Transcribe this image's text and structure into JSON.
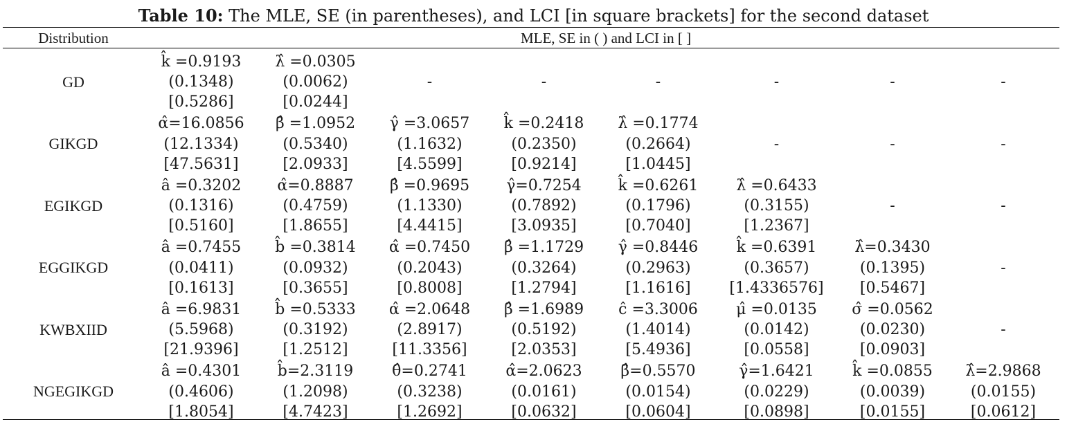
{
  "caption": {
    "label": "Table 10:",
    "text": " The MLE, SE (in parentheses), and LCI [in square brackets] for the second dataset"
  },
  "header": {
    "distribution": "Distribution",
    "mle": "MLE, SE in ( ) and LCI in [ ]"
  },
  "rows": [
    {
      "name": "GD",
      "cells": [
        {
          "est": "k̂ =0.9193",
          "se": "(0.1348)",
          "lci": "[0.5286]"
        },
        {
          "est": "λ̂ =0.0305",
          "se": "(0.0062)",
          "lci": "[0.0244]"
        },
        {
          "dash": "-"
        },
        {
          "dash": "-"
        },
        {
          "dash": "-"
        },
        {
          "dash": "-"
        },
        {
          "dash": "-"
        },
        {
          "dash": "-"
        }
      ]
    },
    {
      "name": "GIKGD",
      "cells": [
        {
          "est": "α̂=16.0856",
          "se": "(12.1334)",
          "lci": "[47.5631]"
        },
        {
          "est": "β̂ =1.0952",
          "se": "(0.5340)",
          "lci": "[2.0933]"
        },
        {
          "est": "γ̂ =3.0657",
          "se": "(1.1632)",
          "lci": "[4.5599]"
        },
        {
          "est": "k̂ =0.2418",
          "se": "(0.2350)",
          "lci": "[0.9214]"
        },
        {
          "est": "λ̂ =0.1774",
          "se": "(0.2664)",
          "lci": "[1.0445]"
        },
        {
          "dash": "-"
        },
        {
          "dash": "-"
        },
        {
          "dash": "-"
        }
      ]
    },
    {
      "name": "EGIKGD",
      "cells": [
        {
          "est": "â =0.3202",
          "se": "(0.1316)",
          "lci": "[0.5160]"
        },
        {
          "est": "α̂=0.8887",
          "se": "(0.4759)",
          "lci": "[1.8655]"
        },
        {
          "est": "β̂ =0.9695",
          "se": "(1.1330)",
          "lci": "[4.4415]"
        },
        {
          "est": "γ̂=0.7254",
          "se": "(0.7892)",
          "lci": "[3.0935]"
        },
        {
          "est": "k̂ =0.6261",
          "se": "(0.1796)",
          "lci": "[0.7040]"
        },
        {
          "est": "λ̂ =0.6433",
          "se": "(0.3155)",
          "lci": "[1.2367]"
        },
        {
          "dash": "-"
        },
        {
          "dash": "-"
        }
      ]
    },
    {
      "name": "EGGIKGD",
      "cells": [
        {
          "est": "â =0.7455",
          "se": "(0.0411)",
          "lci": "[0.1613]"
        },
        {
          "est": "b̂ =0.3814",
          "se": "(0.0932)",
          "lci": "[0.3655]"
        },
        {
          "est": "α̂ =0.7450",
          "se": "(0.2043)",
          "lci": "[0.8008]"
        },
        {
          "est": "β̂ =1.1729",
          "se": "(0.3264)",
          "lci": "[1.2794]"
        },
        {
          "est": "γ̂ =0.8446",
          "se": "(0.2963)",
          "lci": "[1.1616]"
        },
        {
          "est": "k̂ =0.6391",
          "se": "(0.3657)",
          "lci": "[1.4336576]"
        },
        {
          "est": "λ̂=0.3430",
          "se": "(0.1395)",
          "lci": "[0.5467]"
        },
        {
          "dash": "-"
        }
      ]
    },
    {
      "name": "KWBXIID",
      "cells": [
        {
          "est": "â =6.9831",
          "se": "(5.5968)",
          "lci": "[21.9396]"
        },
        {
          "est": "b̂ =0.5333",
          "se": "(0.3192)",
          "lci": "[1.2512]"
        },
        {
          "est": "α̂ =2.0648",
          "se": "(2.8917)",
          "lci": "[11.3356]"
        },
        {
          "est": "β̂ =1.6989",
          "se": "(0.5192)",
          "lci": "[2.0353]"
        },
        {
          "est": "ĉ =3.3006",
          "se": "(1.4014)",
          "lci": "[5.4936]"
        },
        {
          "est": "μ̂ =0.0135",
          "se": "(0.0142)",
          "lci": "[0.0558]"
        },
        {
          "est": "σ̂ =0.0562",
          "se": "(0.0230)",
          "lci": "[0.0903]"
        },
        {
          "dash": "-"
        }
      ]
    },
    {
      "name": "NGEGIKGD",
      "cells": [
        {
          "est": "â =0.4301",
          "se": "(0.4606)",
          "lci": "[1.8054]"
        },
        {
          "est": "b̂=2.3119",
          "se": "(1.2098)",
          "lci": "[4.7423]"
        },
        {
          "est": "θ̂=0.2741",
          "se": "(0.3238)",
          "lci": "[1.2692]"
        },
        {
          "est": "α̂=2.0623",
          "se": "(0.0161)",
          "lci": "[0.0632]"
        },
        {
          "est": "β̂=0.5570",
          "se": "(0.0154)",
          "lci": "[0.0604]"
        },
        {
          "est": "γ̂=1.6421",
          "se": "(0.0229)",
          "lci": "[0.0898]"
        },
        {
          "est": "k̂ =0.0855",
          "se": "(0.0039)",
          "lci": "[0.0155]"
        },
        {
          "est": "λ̂=2.9868",
          "se": "(0.0155)",
          "lci": "[0.0612]"
        }
      ]
    }
  ]
}
